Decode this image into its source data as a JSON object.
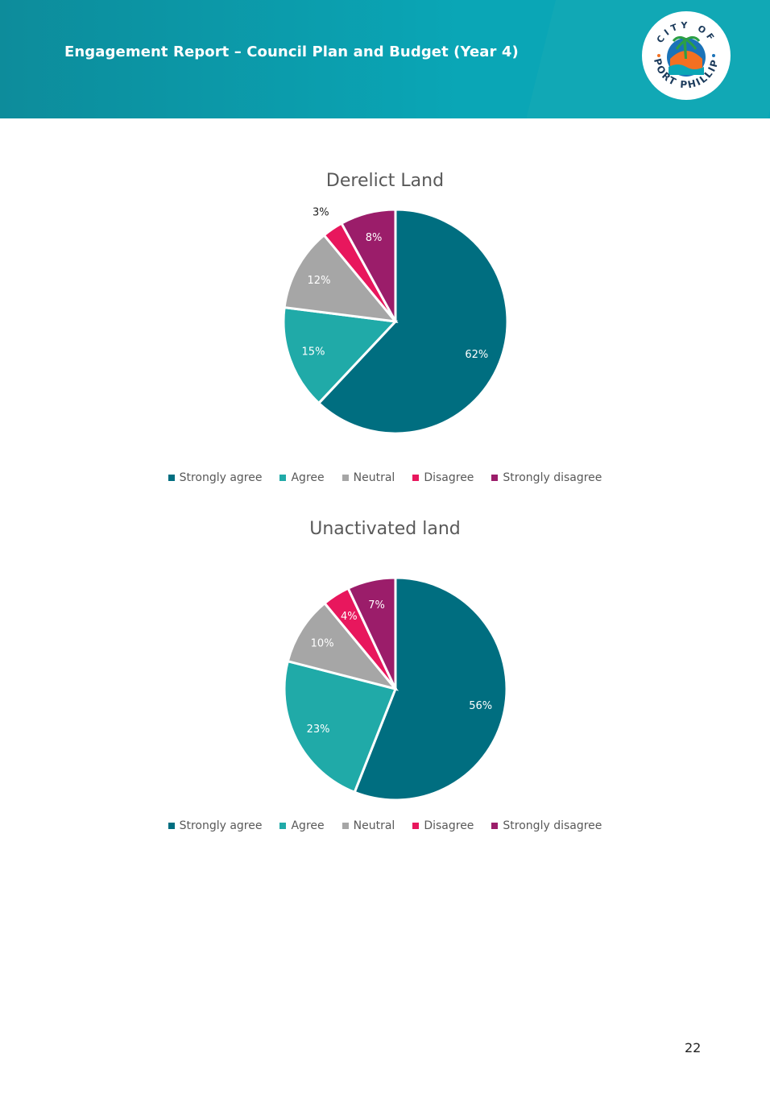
{
  "header": {
    "title": "Engagement Report – Council Plan and Budget (Year 4)",
    "logo_text_top": "CITY OF",
    "logo_text_bottom": "PORT PHILLIP"
  },
  "colors": {
    "strongly_agree": "#006e80",
    "agree": "#20aaa8",
    "neutral": "#a6a6a6",
    "disagree": "#e8175d",
    "strongly_disagree": "#9b1d6a",
    "header_bg": "#0aa6b6"
  },
  "chart_data": [
    {
      "type": "pie",
      "title": "Derelict Land",
      "categories": [
        "Strongly agree",
        "Agree",
        "Neutral",
        "Disagree",
        "Strongly disagree"
      ],
      "values": [
        62,
        15,
        12,
        3,
        8
      ],
      "labels": [
        "62%",
        "15%",
        "12%",
        "3%",
        "8%"
      ],
      "legend_position": "bottom"
    },
    {
      "type": "pie",
      "title": "Unactivated land",
      "categories": [
        "Strongly agree",
        "Agree",
        "Neutral",
        "Disagree",
        "Strongly disagree"
      ],
      "values": [
        56,
        23,
        10,
        4,
        7
      ],
      "labels": [
        "56%",
        "23%",
        "10%",
        "4%",
        "7%"
      ],
      "legend_position": "bottom"
    }
  ],
  "page_number": "22"
}
